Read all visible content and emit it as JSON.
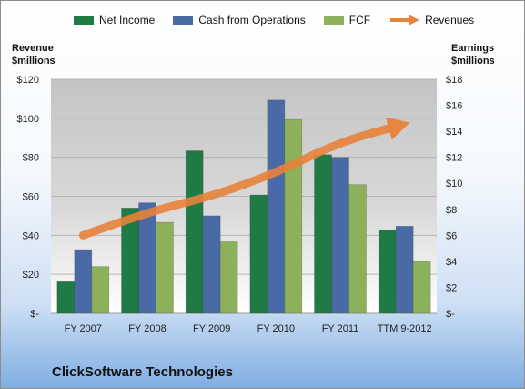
{
  "chart_data": {
    "type": "bar",
    "categories": [
      "FY 2007",
      "FY 2008",
      "FY 2009",
      "FY 2010",
      "FY 2011",
      "TTM 9-2012"
    ],
    "left_axis": {
      "title_lines": [
        "Revenue",
        "$millions"
      ],
      "ylim": [
        0,
        120
      ],
      "ticks": [
        0,
        20,
        40,
        60,
        80,
        100,
        120
      ],
      "tick_labels": [
        "$-",
        "$20",
        "$40",
        "$60",
        "$80",
        "$100",
        "$120"
      ]
    },
    "right_axis": {
      "title_lines": [
        "Earnings",
        "$millions"
      ],
      "ylim": [
        0,
        18
      ],
      "ticks": [
        0,
        2,
        4,
        6,
        8,
        10,
        12,
        14,
        16,
        18
      ],
      "tick_labels": [
        "$-",
        "$2",
        "$4",
        "$6",
        "$8",
        "$10",
        "$12",
        "$14",
        "$16",
        "$18"
      ]
    },
    "series": [
      {
        "name": "Net Income",
        "axis": "right",
        "color": "#1f7a45",
        "values": [
          2.5,
          8.1,
          12.5,
          9.1,
          12.2,
          6.4
        ]
      },
      {
        "name": "Cash from Operations",
        "axis": "right",
        "color": "#4a6aa5",
        "values": [
          4.9,
          8.5,
          7.5,
          16.4,
          12.0,
          6.7
        ]
      },
      {
        "name": "FCF",
        "axis": "right",
        "color": "#8db05a",
        "values": [
          3.6,
          7.0,
          5.5,
          14.9,
          9.9,
          4.0
        ]
      }
    ],
    "line_series": {
      "name": "Revenues",
      "axis": "left",
      "color": "#e8823a",
      "values": [
        40,
        52,
        60,
        72,
        88,
        97
      ]
    },
    "grid": true,
    "legend_position": "top"
  },
  "company_name": "ClickSoftware Technologies"
}
